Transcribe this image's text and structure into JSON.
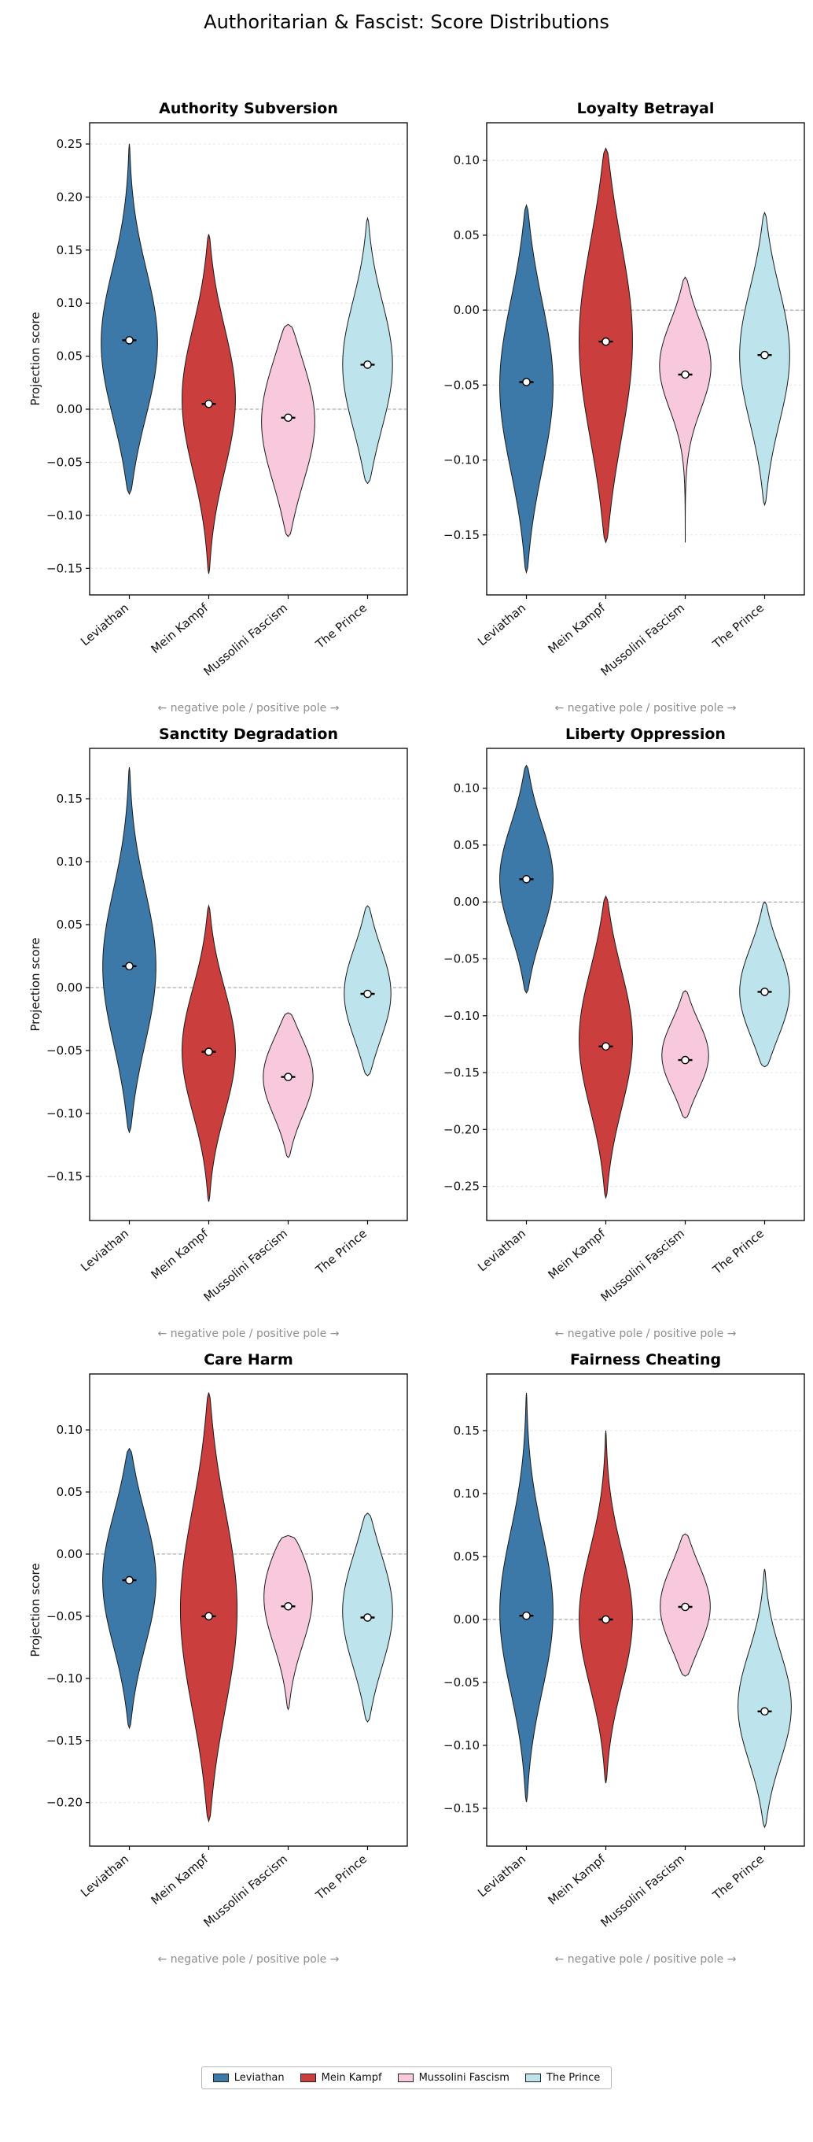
{
  "page": {
    "title": "Authoritarian & Fascist: Score Distributions"
  },
  "axis": {
    "ylabel": "Projection score",
    "caption": "← negative pole  /  positive pole →"
  },
  "categories": [
    "Leviathan",
    "Mein Kampf",
    "Mussolini Fascism",
    "The Prince"
  ],
  "palette": {
    "Leviathan": "#3d79a8",
    "Mein Kampf": "#cb3e3e",
    "Mussolini Fascism": "#f8c8dc",
    "The Prince": "#bde3ec"
  },
  "legend": {
    "items": [
      {
        "label": "Leviathan",
        "color": "#3d79a8"
      },
      {
        "label": "Mein Kampf",
        "color": "#cb3e3e"
      },
      {
        "label": "Mussolini Fascism",
        "color": "#f8c8dc"
      },
      {
        "label": "The Prince",
        "color": "#bde3ec"
      }
    ]
  },
  "chart_data": [
    {
      "type": "violin",
      "title": "Authority Subversion",
      "ylabel": "Projection score",
      "ylim": [
        -0.175,
        0.27
      ],
      "yticks": [
        -0.15,
        -0.1,
        -0.05,
        0,
        0.05,
        0.1,
        0.15,
        0.2,
        0.25
      ],
      "zero_line": true,
      "categories": [
        "Leviathan",
        "Mein Kampf",
        "Mussolini Fascism",
        "The Prince"
      ],
      "series": [
        {
          "name": "Leviathan",
          "min": -0.08,
          "max": 0.25,
          "median": 0.065,
          "peak": 0.06,
          "sigma": 0.22,
          "width": 0.85
        },
        {
          "name": "Mein Kampf",
          "min": -0.155,
          "max": 0.165,
          "median": 0.005,
          "peak": 0.01,
          "sigma": 0.22,
          "width": 0.8
        },
        {
          "name": "Mussolini Fascism",
          "min": -0.12,
          "max": 0.08,
          "median": -0.008,
          "peak": -0.01,
          "sigma": 0.3,
          "width": 0.8
        },
        {
          "name": "The Prince",
          "min": -0.07,
          "max": 0.18,
          "median": 0.042,
          "peak": 0.04,
          "sigma": 0.25,
          "width": 0.75
        }
      ]
    },
    {
      "type": "violin",
      "title": "Loyalty Betrayal",
      "ylabel": "",
      "ylim": [
        -0.19,
        0.125
      ],
      "yticks": [
        -0.15,
        -0.1,
        -0.05,
        0,
        0.05,
        0.1
      ],
      "zero_line": true,
      "categories": [
        "Leviathan",
        "Mein Kampf",
        "Mussolini Fascism",
        "The Prince"
      ],
      "series": [
        {
          "name": "Leviathan",
          "min": -0.175,
          "max": 0.07,
          "median": -0.048,
          "peak": -0.05,
          "sigma": 0.24,
          "width": 0.8
        },
        {
          "name": "Mein Kampf",
          "min": -0.155,
          "max": 0.108,
          "median": -0.021,
          "peak": -0.02,
          "sigma": 0.26,
          "width": 0.8
        },
        {
          "name": "Mussolini Fascism",
          "min": -0.155,
          "max": 0.022,
          "median": -0.043,
          "peak": -0.035,
          "sigma": 0.17,
          "width": 0.8
        },
        {
          "name": "The Prince",
          "min": -0.13,
          "max": 0.065,
          "median": -0.03,
          "peak": -0.03,
          "sigma": 0.24,
          "width": 0.75
        }
      ]
    },
    {
      "type": "violin",
      "title": "Sanctity Degradation",
      "ylabel": "Projection score",
      "ylim": [
        -0.185,
        0.19
      ],
      "yticks": [
        -0.15,
        -0.1,
        -0.05,
        0,
        0.05,
        0.1,
        0.15
      ],
      "zero_line": true,
      "categories": [
        "Leviathan",
        "Mein Kampf",
        "Mussolini Fascism",
        "The Prince"
      ],
      "series": [
        {
          "name": "Leviathan",
          "min": -0.115,
          "max": 0.175,
          "median": 0.017,
          "peak": 0.015,
          "sigma": 0.22,
          "width": 0.8
        },
        {
          "name": "Mein Kampf",
          "min": -0.17,
          "max": 0.065,
          "median": -0.051,
          "peak": -0.05,
          "sigma": 0.22,
          "width": 0.8
        },
        {
          "name": "Mussolini Fascism",
          "min": -0.135,
          "max": -0.02,
          "median": -0.071,
          "peak": -0.07,
          "sigma": 0.28,
          "width": 0.75
        },
        {
          "name": "The Prince",
          "min": -0.07,
          "max": 0.065,
          "median": -0.005,
          "peak": -0.005,
          "sigma": 0.28,
          "width": 0.7
        }
      ]
    },
    {
      "type": "violin",
      "title": "Liberty Oppression",
      "ylabel": "",
      "ylim": [
        -0.28,
        0.135
      ],
      "yticks": [
        -0.25,
        -0.2,
        -0.15,
        -0.1,
        -0.05,
        0,
        0.05,
        0.1
      ],
      "zero_line": true,
      "categories": [
        "Leviathan",
        "Mein Kampf",
        "Mussolini Fascism",
        "The Prince"
      ],
      "series": [
        {
          "name": "Leviathan",
          "min": -0.08,
          "max": 0.12,
          "median": 0.02,
          "peak": 0.02,
          "sigma": 0.25,
          "width": 0.8
        },
        {
          "name": "Mein Kampf",
          "min": -0.26,
          "max": 0.005,
          "median": -0.127,
          "peak": -0.12,
          "sigma": 0.24,
          "width": 0.8
        },
        {
          "name": "Mussolini Fascism",
          "min": -0.19,
          "max": -0.078,
          "median": -0.139,
          "peak": -0.135,
          "sigma": 0.28,
          "width": 0.7
        },
        {
          "name": "The Prince",
          "min": -0.145,
          "max": 0.0,
          "median": -0.079,
          "peak": -0.08,
          "sigma": 0.28,
          "width": 0.75
        }
      ]
    },
    {
      "type": "violin",
      "title": "Care Harm",
      "ylabel": "Projection score",
      "ylim": [
        -0.235,
        0.145
      ],
      "yticks": [
        -0.2,
        -0.15,
        -0.1,
        -0.05,
        0,
        0.05,
        0.1
      ],
      "zero_line": true,
      "categories": [
        "Leviathan",
        "Mein Kampf",
        "Mussolini Fascism",
        "The Prince"
      ],
      "series": [
        {
          "name": "Leviathan",
          "min": -0.14,
          "max": 0.085,
          "median": -0.021,
          "peak": -0.02,
          "sigma": 0.25,
          "width": 0.8
        },
        {
          "name": "Mein Kampf",
          "min": -0.215,
          "max": 0.13,
          "median": -0.05,
          "peak": -0.045,
          "sigma": 0.24,
          "width": 0.85
        },
        {
          "name": "Mussolini Fascism",
          "min": -0.125,
          "max": 0.015,
          "median": -0.042,
          "peak": -0.03,
          "sigma": 0.3,
          "width": 0.75
        },
        {
          "name": "The Prince",
          "min": -0.135,
          "max": 0.033,
          "median": -0.051,
          "peak": -0.045,
          "sigma": 0.28,
          "width": 0.75
        }
      ]
    },
    {
      "type": "violin",
      "title": "Fairness Cheating",
      "ylabel": "",
      "ylim": [
        -0.18,
        0.195
      ],
      "yticks": [
        -0.15,
        -0.1,
        -0.05,
        0,
        0.05,
        0.1,
        0.15
      ],
      "zero_line": true,
      "categories": [
        "Leviathan",
        "Mein Kampf",
        "Mussolini Fascism",
        "The Prince"
      ],
      "series": [
        {
          "name": "Leviathan",
          "min": -0.145,
          "max": 0.18,
          "median": 0.003,
          "peak": 0.005,
          "sigma": 0.2,
          "width": 0.8
        },
        {
          "name": "Mein Kampf",
          "min": -0.13,
          "max": 0.15,
          "median": 0.0,
          "peak": 0.0,
          "sigma": 0.2,
          "width": 0.8
        },
        {
          "name": "Mussolini Fascism",
          "min": -0.045,
          "max": 0.068,
          "median": 0.01,
          "peak": 0.01,
          "sigma": 0.3,
          "width": 0.75
        },
        {
          "name": "The Prince",
          "min": -0.165,
          "max": 0.04,
          "median": -0.073,
          "peak": -0.07,
          "sigma": 0.22,
          "width": 0.8
        }
      ]
    }
  ]
}
